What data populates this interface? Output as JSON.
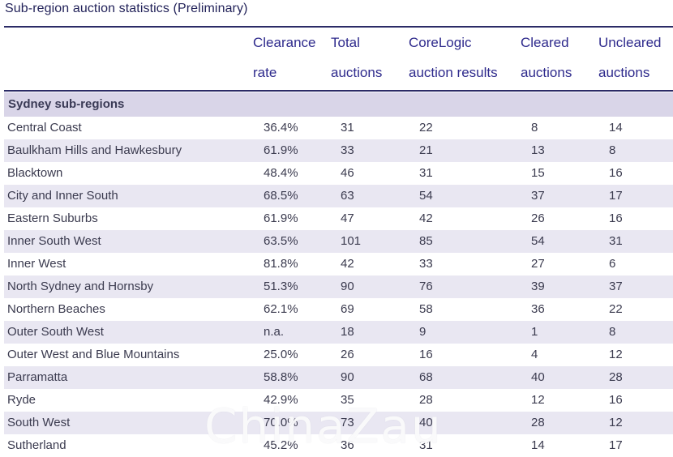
{
  "title": "Sub-region auction statistics (Preliminary)",
  "headers": [
    {
      "line1": "",
      "line2": ""
    },
    {
      "line1": "Clearance",
      "line2": "rate"
    },
    {
      "line1": "Total",
      "line2": "auctions"
    },
    {
      "line1": "CoreLogic",
      "line2": "auction results"
    },
    {
      "line1": "Cleared",
      "line2": "auctions"
    },
    {
      "line1": "Uncleared",
      "line2": "auctions"
    }
  ],
  "group_label": "Sydney sub-regions",
  "rows": [
    [
      "Central Coast",
      "36.4%",
      "31",
      "22",
      "8",
      "14"
    ],
    [
      "Baulkham Hills and Hawkesbury",
      "61.9%",
      "33",
      "21",
      "13",
      "8"
    ],
    [
      "Blacktown",
      "48.4%",
      "46",
      "31",
      "15",
      "16"
    ],
    [
      "City and Inner South",
      "68.5%",
      "63",
      "54",
      "37",
      "17"
    ],
    [
      "Eastern Suburbs",
      "61.9%",
      "47",
      "42",
      "26",
      "16"
    ],
    [
      "Inner South West",
      "63.5%",
      "101",
      "85",
      "54",
      "31"
    ],
    [
      "Inner West",
      "81.8%",
      "42",
      "33",
      "27",
      "6"
    ],
    [
      "North Sydney and Hornsby",
      "51.3%",
      "90",
      "76",
      "39",
      "37"
    ],
    [
      "Northern Beaches",
      "62.1%",
      "69",
      "58",
      "36",
      "22"
    ],
    [
      "Outer South West",
      "n.a.",
      "18",
      "9",
      "1",
      "8"
    ],
    [
      "Outer West and Blue Mountains",
      "25.0%",
      "26",
      "16",
      "4",
      "12"
    ],
    [
      "Parramatta",
      "58.8%",
      "90",
      "68",
      "40",
      "28"
    ],
    [
      "Ryde",
      "42.9%",
      "35",
      "28",
      "12",
      "16"
    ],
    [
      "South West",
      "70.0%",
      "73",
      "40",
      "28",
      "12"
    ],
    [
      "Sutherland",
      "45.2%",
      "36",
      "31",
      "14",
      "17"
    ]
  ],
  "watermark": "ChinaZau",
  "colors": {
    "header_text": "#2e2a8c",
    "group_bg": "#d9d5e8",
    "alt_row_bg": "#e9e7f2",
    "rule": "#2b2b66"
  }
}
